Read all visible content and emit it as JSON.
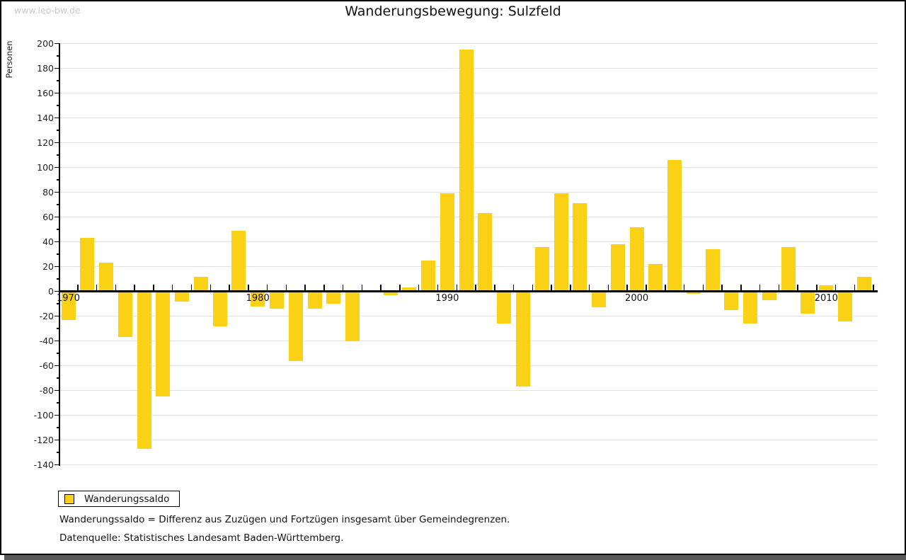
{
  "watermark": "www.leo-bw.de",
  "title": "Wanderungsbewegung: Sulzfeld",
  "y_axis_label": "Personen",
  "legend": {
    "label": "Wanderungssaldo"
  },
  "footnotes": {
    "definition": "Wanderungssaldo = Differenz aus Zuzügen und Fortzügen insgesamt über Gemeindegrenzen.",
    "source": "Datenquelle: Statistisches Landesamt Baden-Württemberg."
  },
  "colors": {
    "bar": "#FBD116",
    "grid": "#E3E3E3",
    "axis": "#000000",
    "watermark": "#C9C9C9",
    "shadow": "#595959"
  },
  "chart_data": {
    "type": "bar",
    "title": "Wanderungsbewegung: Sulzfeld",
    "xlabel": "",
    "ylabel": "Personen",
    "ylim": [
      -140,
      200
    ],
    "ytick_step": 20,
    "ytick_minor_step": 10,
    "grid": true,
    "legend_position": "bottom-left",
    "xtick_labels": [
      "1970",
      "1980",
      "1990",
      "2000",
      "2010"
    ],
    "x": [
      1970,
      1971,
      1972,
      1973,
      1974,
      1975,
      1976,
      1977,
      1978,
      1979,
      1980,
      1981,
      1982,
      1983,
      1984,
      1985,
      1986,
      1987,
      1988,
      1989,
      1990,
      1991,
      1992,
      1993,
      1994,
      1995,
      1996,
      1997,
      1998,
      1999,
      2000,
      2001,
      2002,
      2003,
      2004,
      2005,
      2006,
      2007,
      2008,
      2009,
      2010,
      2011,
      2012
    ],
    "series": [
      {
        "name": "Wanderungssaldo",
        "values": [
          -23,
          43,
          23,
          -37,
          -127,
          -85,
          -8,
          12,
          -28,
          49,
          -12,
          -14,
          -56,
          -14,
          -10,
          -40,
          0,
          -3,
          3,
          25,
          79,
          195,
          63,
          -26,
          -77,
          36,
          79,
          71,
          -13,
          38,
          52,
          22,
          106,
          -2,
          34,
          -15,
          -26,
          -7,
          36,
          -18,
          5,
          -24,
          12
        ]
      }
    ]
  }
}
